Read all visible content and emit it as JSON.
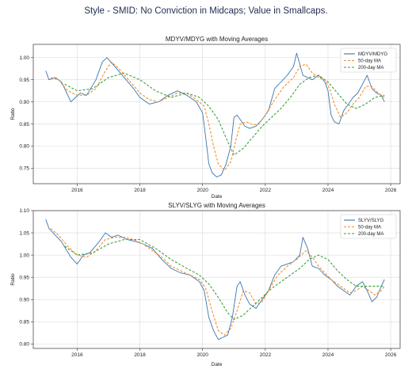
{
  "page_title": "Style - SMID: No Conviction in Midcaps; Value in Smallcaps.",
  "colors": {
    "ratio": "#3b75af",
    "ma50": "#f28e2b",
    "ma200": "#3ca03c",
    "grid": "#d9d9d9",
    "title": "#1f2d4d"
  },
  "chart_data": [
    {
      "type": "line",
      "title": "MDYV/MDYG with Moving Averages",
      "xlabel": "Date",
      "ylabel": "Ratio",
      "xlim": [
        2014.6,
        2026.3
      ],
      "ylim": [
        0.715,
        1.03
      ],
      "xticks": [
        2016,
        2018,
        2020,
        2022,
        2024,
        2026
      ],
      "yticks": [
        0.75,
        0.8,
        0.85,
        0.9,
        0.95,
        1.0
      ],
      "ytick_labels": [
        "0.75",
        "0.80",
        "0.85",
        "0.90",
        "0.95",
        "1.00"
      ],
      "grid": true,
      "legend_position": "top-right",
      "series": [
        {
          "name": "MDYV/MDYG",
          "style": "solid",
          "color": "#3b75af",
          "x": [
            2015.0,
            2015.1,
            2015.3,
            2015.5,
            2015.8,
            2015.95,
            2016.1,
            2016.3,
            2016.6,
            2016.8,
            2016.95,
            2017.2,
            2017.5,
            2017.8,
            2018.0,
            2018.3,
            2018.6,
            2018.9,
            2019.2,
            2019.5,
            2019.8,
            2020.0,
            2020.1,
            2020.2,
            2020.3,
            2020.45,
            2020.6,
            2020.75,
            2020.9,
            2021.0,
            2021.1,
            2021.2,
            2021.35,
            2021.5,
            2021.7,
            2021.9,
            2022.1,
            2022.3,
            2022.5,
            2022.7,
            2022.9,
            2023.0,
            2023.1,
            2023.2,
            2023.35,
            2023.5,
            2023.7,
            2023.9,
            2024.0,
            2024.1,
            2024.2,
            2024.35,
            2024.5,
            2024.65,
            2024.8,
            2024.95,
            2025.1,
            2025.25,
            2025.4,
            2025.55,
            2025.7,
            2025.8
          ],
          "y": [
            0.97,
            0.95,
            0.955,
            0.945,
            0.9,
            0.91,
            0.92,
            0.915,
            0.95,
            0.99,
            1.0,
            0.98,
            0.955,
            0.93,
            0.91,
            0.895,
            0.9,
            0.915,
            0.925,
            0.915,
            0.9,
            0.875,
            0.82,
            0.76,
            0.74,
            0.73,
            0.735,
            0.76,
            0.8,
            0.865,
            0.87,
            0.86,
            0.845,
            0.84,
            0.845,
            0.86,
            0.88,
            0.93,
            0.945,
            0.96,
            0.98,
            1.01,
            0.985,
            0.96,
            0.955,
            0.95,
            0.96,
            0.945,
            0.925,
            0.87,
            0.855,
            0.85,
            0.88,
            0.895,
            0.91,
            0.92,
            0.94,
            0.96,
            0.93,
            0.92,
            0.915,
            0.9
          ]
        },
        {
          "name": "50-day MA",
          "style": "dashed",
          "color": "#f28e2b",
          "x": [
            2015.15,
            2015.4,
            2015.7,
            2016.0,
            2016.3,
            2016.6,
            2016.9,
            2017.1,
            2017.4,
            2017.7,
            2018.0,
            2018.3,
            2018.6,
            2018.9,
            2019.2,
            2019.5,
            2019.8,
            2020.05,
            2020.2,
            2020.35,
            2020.5,
            2020.7,
            2020.9,
            2021.05,
            2021.2,
            2021.4,
            2021.6,
            2021.8,
            2022.0,
            2022.3,
            2022.6,
            2022.9,
            2023.1,
            2023.3,
            2023.5,
            2023.7,
            2023.9,
            2024.05,
            2024.2,
            2024.4,
            2024.6,
            2024.8,
            2025.0,
            2025.2,
            2025.4,
            2025.6,
            2025.8
          ],
          "y": [
            0.955,
            0.95,
            0.925,
            0.915,
            0.915,
            0.93,
            0.97,
            0.99,
            0.97,
            0.945,
            0.92,
            0.905,
            0.9,
            0.91,
            0.92,
            0.92,
            0.905,
            0.89,
            0.85,
            0.8,
            0.76,
            0.745,
            0.765,
            0.81,
            0.85,
            0.855,
            0.848,
            0.85,
            0.87,
            0.905,
            0.935,
            0.955,
            0.98,
            0.985,
            0.965,
            0.955,
            0.95,
            0.93,
            0.895,
            0.865,
            0.875,
            0.895,
            0.91,
            0.935,
            0.935,
            0.92,
            0.91
          ]
        },
        {
          "name": "200-day MA",
          "style": "dashed",
          "color": "#3ca03c",
          "x": [
            2015.6,
            2016.0,
            2016.5,
            2017.0,
            2017.5,
            2018.0,
            2018.5,
            2019.0,
            2019.5,
            2019.9,
            2020.2,
            2020.5,
            2020.8,
            2021.0,
            2021.3,
            2021.6,
            2021.9,
            2022.2,
            2022.5,
            2022.8,
            2023.1,
            2023.4,
            2023.7,
            2024.0,
            2024.3,
            2024.6,
            2024.9,
            2025.2,
            2025.5,
            2025.8
          ],
          "y": [
            0.94,
            0.925,
            0.93,
            0.955,
            0.965,
            0.95,
            0.925,
            0.91,
            0.92,
            0.91,
            0.89,
            0.86,
            0.81,
            0.78,
            0.795,
            0.82,
            0.845,
            0.865,
            0.885,
            0.91,
            0.94,
            0.955,
            0.96,
            0.945,
            0.92,
            0.895,
            0.885,
            0.895,
            0.91,
            0.915
          ]
        }
      ]
    },
    {
      "type": "line",
      "title": "SLYV/SLYG with Moving Averages",
      "xlabel": "Date",
      "ylabel": "Ratio",
      "xlim": [
        2014.6,
        2026.3
      ],
      "ylim": [
        0.79,
        1.1
      ],
      "xticks": [
        2016,
        2018,
        2020,
        2022,
        2024,
        2026
      ],
      "yticks": [
        0.8,
        0.85,
        0.9,
        0.95,
        1.0,
        1.05,
        1.1
      ],
      "ytick_labels": [
        "0.80",
        "0.85",
        "0.90",
        "0.95",
        "1.00",
        "1.05",
        "1.10"
      ],
      "grid": true,
      "legend_position": "top-right",
      "series": [
        {
          "name": "SLYV/SLYG",
          "style": "solid",
          "color": "#3b75af",
          "x": [
            2015.0,
            2015.1,
            2015.3,
            2015.5,
            2015.8,
            2016.0,
            2016.2,
            2016.4,
            2016.7,
            2016.9,
            2017.1,
            2017.3,
            2017.6,
            2017.9,
            2018.1,
            2018.4,
            2018.7,
            2019.0,
            2019.3,
            2019.6,
            2019.9,
            2020.05,
            2020.2,
            2020.35,
            2020.5,
            2020.65,
            2020.8,
            2020.95,
            2021.1,
            2021.2,
            2021.35,
            2021.5,
            2021.7,
            2021.9,
            2022.1,
            2022.3,
            2022.5,
            2022.7,
            2022.9,
            2023.1,
            2023.2,
            2023.35,
            2023.5,
            2023.7,
            2023.9,
            2024.1,
            2024.3,
            2024.5,
            2024.7,
            2024.9,
            2025.1,
            2025.25,
            2025.4,
            2025.55,
            2025.7,
            2025.8
          ],
          "y": [
            1.08,
            1.06,
            1.045,
            1.03,
            0.995,
            0.98,
            1.0,
            1.005,
            1.03,
            1.05,
            1.04,
            1.045,
            1.035,
            1.03,
            1.025,
            1.015,
            0.99,
            0.97,
            0.96,
            0.955,
            0.94,
            0.92,
            0.86,
            0.83,
            0.81,
            0.815,
            0.82,
            0.86,
            0.93,
            0.94,
            0.91,
            0.89,
            0.88,
            0.9,
            0.92,
            0.955,
            0.975,
            0.98,
            0.985,
            1.0,
            1.04,
            1.015,
            0.975,
            0.97,
            0.955,
            0.945,
            0.93,
            0.92,
            0.91,
            0.93,
            0.94,
            0.92,
            0.895,
            0.905,
            0.93,
            0.945
          ]
        },
        {
          "name": "50-day MA",
          "style": "dashed",
          "color": "#f28e2b",
          "x": [
            2015.15,
            2015.4,
            2015.7,
            2016.0,
            2016.3,
            2016.6,
            2016.9,
            2017.2,
            2017.5,
            2017.8,
            2018.1,
            2018.4,
            2018.7,
            2019.0,
            2019.3,
            2019.6,
            2019.9,
            2020.1,
            2020.3,
            2020.5,
            2020.7,
            2020.9,
            2021.1,
            2021.3,
            2021.5,
            2021.7,
            2021.9,
            2022.1,
            2022.4,
            2022.7,
            2023.0,
            2023.3,
            2023.5,
            2023.7,
            2023.9,
            2024.1,
            2024.3,
            2024.5,
            2024.7,
            2024.9,
            2025.1,
            2025.3,
            2025.5,
            2025.7,
            2025.8
          ],
          "y": [
            1.06,
            1.045,
            1.02,
            1.0,
            0.995,
            1.01,
            1.035,
            1.04,
            1.04,
            1.035,
            1.025,
            1.01,
            0.995,
            0.975,
            0.965,
            0.955,
            0.945,
            0.925,
            0.875,
            0.83,
            0.82,
            0.835,
            0.875,
            0.92,
            0.915,
            0.89,
            0.895,
            0.92,
            0.955,
            0.975,
            0.99,
            1.01,
            0.995,
            0.975,
            0.96,
            0.945,
            0.935,
            0.925,
            0.915,
            0.92,
            0.93,
            0.92,
            0.91,
            0.92,
            0.93
          ]
        },
        {
          "name": "200-day MA",
          "style": "dashed",
          "color": "#3ca03c",
          "x": [
            2015.6,
            2016.0,
            2016.5,
            2017.0,
            2017.5,
            2018.0,
            2018.5,
            2019.0,
            2019.5,
            2019.9,
            2020.2,
            2020.5,
            2020.8,
            2021.0,
            2021.3,
            2021.6,
            2021.9,
            2022.2,
            2022.5,
            2022.8,
            2023.1,
            2023.4,
            2023.7,
            2024.0,
            2024.3,
            2024.6,
            2024.9,
            2025.2,
            2025.5,
            2025.8
          ],
          "y": [
            1.02,
            1.0,
            1.005,
            1.025,
            1.035,
            1.035,
            1.015,
            0.99,
            0.97,
            0.955,
            0.935,
            0.905,
            0.87,
            0.855,
            0.865,
            0.885,
            0.905,
            0.925,
            0.94,
            0.955,
            0.97,
            0.99,
            1.0,
            0.99,
            0.965,
            0.945,
            0.93,
            0.93,
            0.93,
            0.93
          ]
        }
      ]
    }
  ]
}
